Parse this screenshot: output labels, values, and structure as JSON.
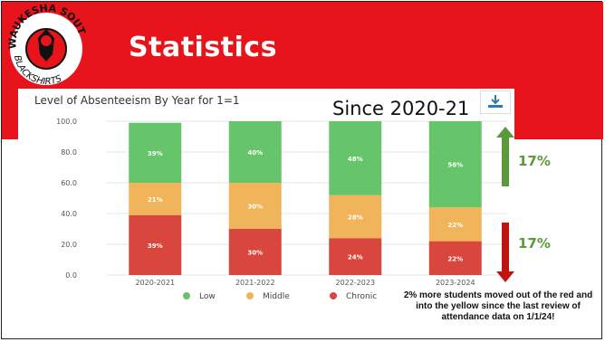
{
  "slide": {
    "title": "Statistics",
    "since_label": "Since 2020-21",
    "up_label": "17%",
    "down_label": "17%",
    "note": "2% more students moved out of the red and into the yellow since the last review of attendance data on 1/1/24!"
  },
  "logo": {
    "text_top": "WAUKESHA SOUTH",
    "text_bottom": "BLACKSHIRTS"
  },
  "colors": {
    "banner": "#e8141c",
    "low": "#66c56a",
    "middle": "#f0b45a",
    "chronic": "#d8463d",
    "up_arrow": "#5a9a3a",
    "down_arrow": "#c0140f"
  },
  "chart_data": {
    "type": "bar",
    "stacked": true,
    "title": "Level of Absenteeism By Year for 1=1",
    "categories": [
      "2020-2021",
      "2021-2022",
      "2022-2023",
      "2023-2024"
    ],
    "ylim": [
      0,
      100
    ],
    "yticks": [
      "0.0",
      "20.0",
      "40.0",
      "60.0",
      "80.0",
      "100.0"
    ],
    "series": [
      {
        "name": "Chronic",
        "values": [
          39,
          30,
          24,
          22
        ],
        "labels": [
          "39%",
          "30%",
          "24%",
          "22%"
        ]
      },
      {
        "name": "Middle",
        "values": [
          21,
          30,
          28,
          22
        ],
        "labels": [
          "21%",
          "30%",
          "28%",
          "22%"
        ]
      },
      {
        "name": "Low",
        "values": [
          39,
          40,
          48,
          56
        ],
        "labels": [
          "39%",
          "40%",
          "48%",
          "56%"
        ]
      }
    ],
    "legend": [
      "Low",
      "Middle",
      "Chronic"
    ],
    "legend_position": "bottom",
    "grid": true
  }
}
